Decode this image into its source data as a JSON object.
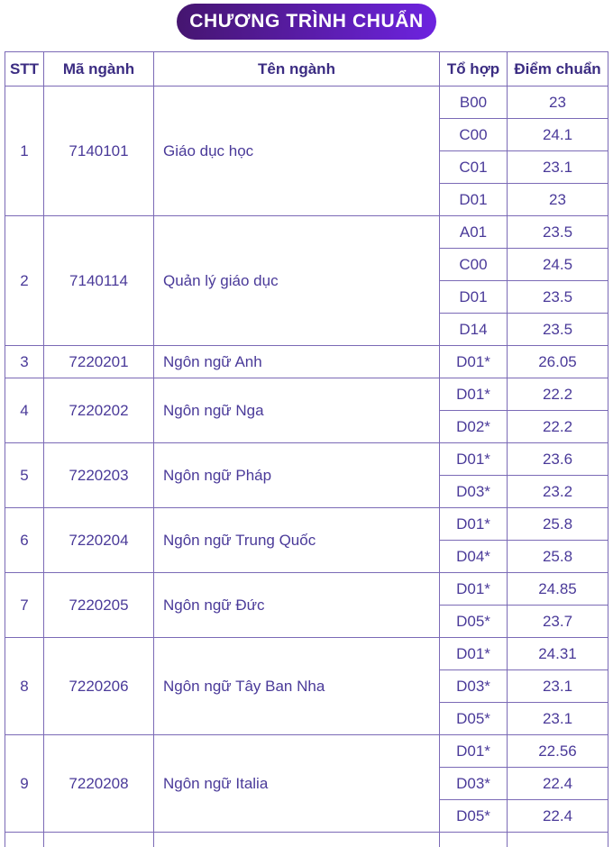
{
  "badge": {
    "label": "CHƯƠNG TRÌNH CHUẨN"
  },
  "colors": {
    "badge_gradient_start": "#45156f",
    "badge_gradient_end": "#6d23e0",
    "table_border": "#7b6ab6",
    "cell_text": "#4a3a99",
    "header_text": "#3b2c82"
  },
  "table": {
    "headers": [
      "STT",
      "Mã ngành",
      "Tên ngành",
      "Tổ hợp",
      "Điểm chuẩn"
    ],
    "rows": [
      {
        "stt": "1",
        "code": "7140101",
        "name": "Giáo dục học",
        "scores": [
          {
            "combo": "B00",
            "score": "23"
          },
          {
            "combo": "C00",
            "score": "24.1"
          },
          {
            "combo": "C01",
            "score": "23.1"
          },
          {
            "combo": "D01",
            "score": "23"
          }
        ]
      },
      {
        "stt": "2",
        "code": "7140114",
        "name": "Quản lý giáo dục",
        "scores": [
          {
            "combo": "A01",
            "score": "23.5"
          },
          {
            "combo": "C00",
            "score": "24.5"
          },
          {
            "combo": "D01",
            "score": "23.5"
          },
          {
            "combo": "D14",
            "score": "23.5"
          }
        ]
      },
      {
        "stt": "3",
        "code": "7220201",
        "name": "Ngôn ngữ Anh",
        "scores": [
          {
            "combo": "D01*",
            "score": "26.05"
          }
        ]
      },
      {
        "stt": "4",
        "code": "7220202",
        "name": "Ngôn ngữ Nga",
        "scores": [
          {
            "combo": "D01*",
            "score": "22.2"
          },
          {
            "combo": "D02*",
            "score": "22.2"
          }
        ]
      },
      {
        "stt": "5",
        "code": "7220203",
        "name": "Ngôn ngữ Pháp",
        "scores": [
          {
            "combo": "D01*",
            "score": "23.6"
          },
          {
            "combo": "D03*",
            "score": "23.2"
          }
        ]
      },
      {
        "stt": "6",
        "code": "7220204",
        "name": "Ngôn ngữ Trung Quốc",
        "scores": [
          {
            "combo": "D01*",
            "score": "25.8"
          },
          {
            "combo": "D04*",
            "score": "25.8"
          }
        ]
      },
      {
        "stt": "7",
        "code": "7220205",
        "name": "Ngôn ngữ Đức",
        "scores": [
          {
            "combo": "D01*",
            "score": "24.85"
          },
          {
            "combo": "D05*",
            "score": "23.7"
          }
        ]
      },
      {
        "stt": "8",
        "code": "7220206",
        "name": "Ngôn ngữ Tây Ban Nha",
        "scores": [
          {
            "combo": "D01*",
            "score": "24.31"
          },
          {
            "combo": "D03*",
            "score": "23.1"
          },
          {
            "combo": "D05*",
            "score": "23.1"
          }
        ]
      },
      {
        "stt": "9",
        "code": "7220208",
        "name": "Ngôn ngữ Italia",
        "scores": [
          {
            "combo": "D01*",
            "score": "22.56"
          },
          {
            "combo": "D03*",
            "score": "22.4"
          },
          {
            "combo": "D05*",
            "score": "22.4"
          }
        ]
      }
    ],
    "partial_row_visible": true
  }
}
